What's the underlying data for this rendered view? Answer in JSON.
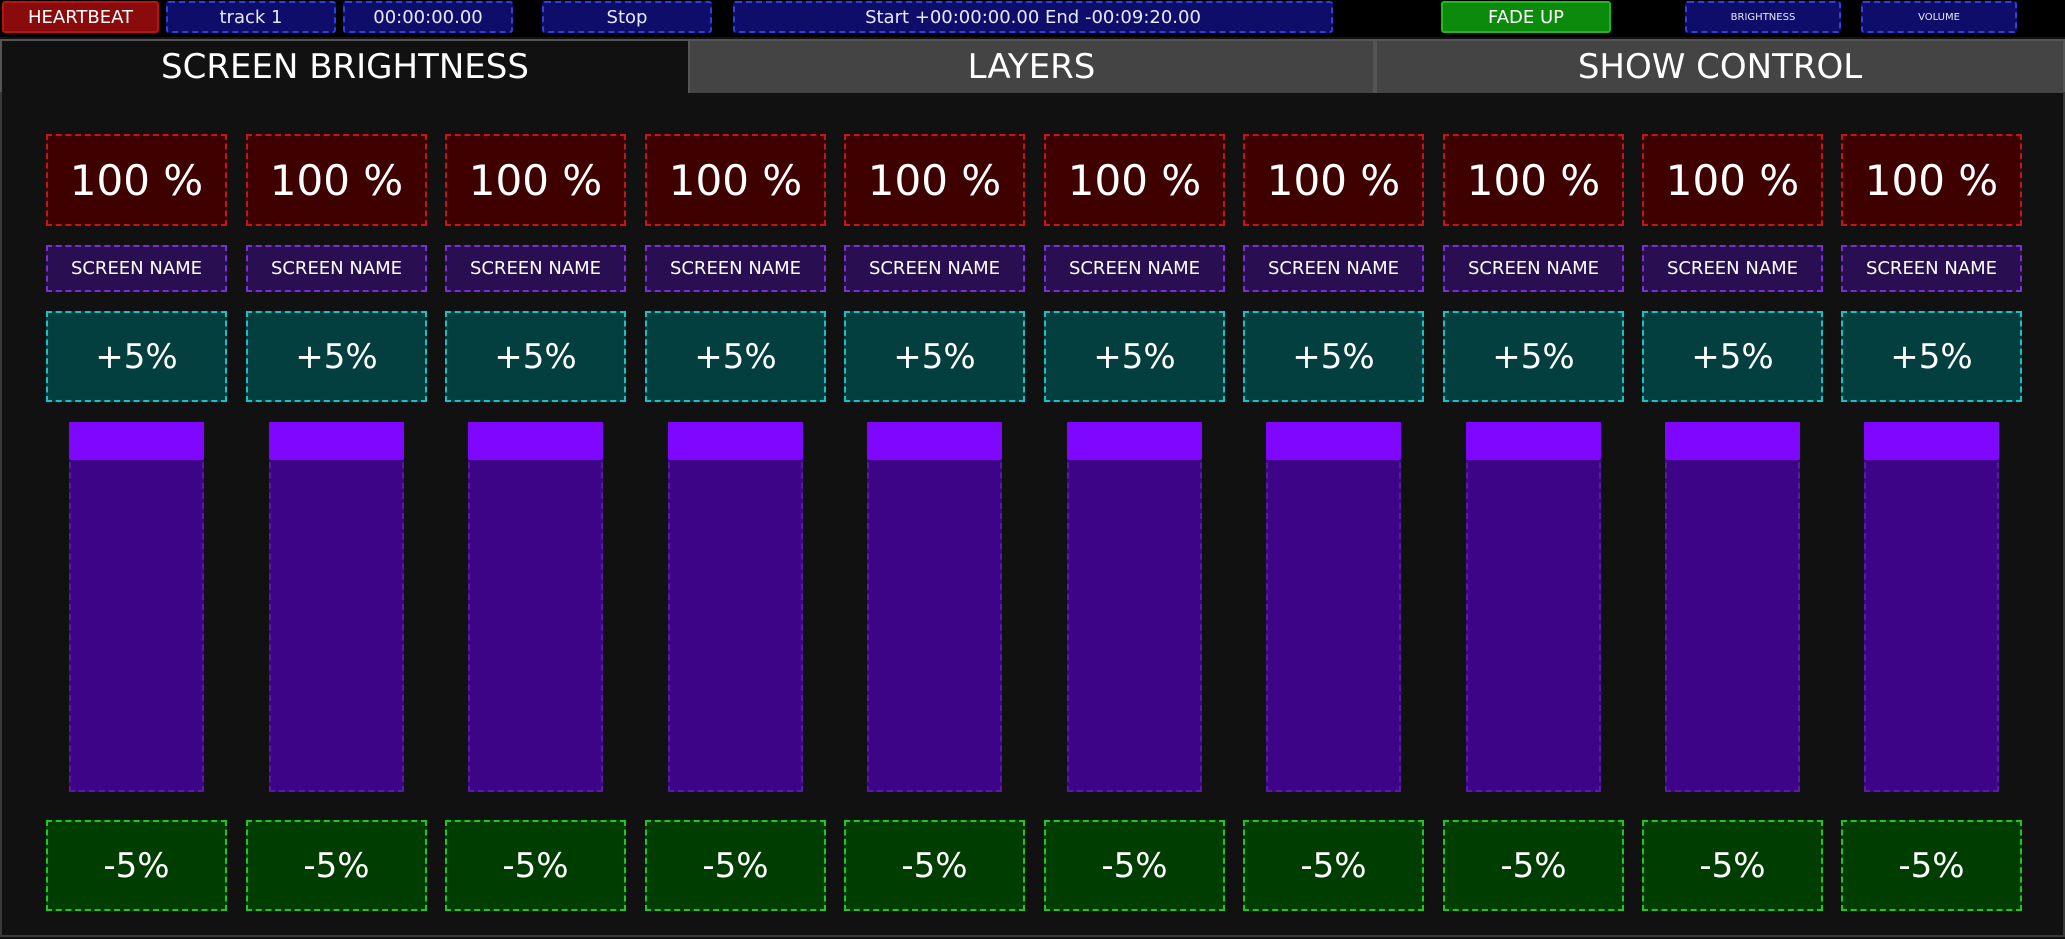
{
  "topbar": {
    "heartbeat": "HEARTBEAT",
    "track": "track 1",
    "timecode": "00:00:00.00",
    "transport": "Stop",
    "range": "Start +00:00:00.00   End -00:09:20.00",
    "fade": "FADE UP",
    "brightness": "BRIGHTNESS",
    "volume": "VOLUME"
  },
  "tabs": [
    {
      "label": "SCREEN BRIGHTNESS",
      "active": true
    },
    {
      "label": "LAYERS",
      "active": false
    },
    {
      "label": "SHOW CONTROL",
      "active": false
    }
  ],
  "channels": [
    {
      "value": "100 %",
      "name": "SCREEN NAME",
      "plus": "+5%",
      "minus": "-5%",
      "level": 1.0
    },
    {
      "value": "100 %",
      "name": "SCREEN NAME",
      "plus": "+5%",
      "minus": "-5%",
      "level": 1.0
    },
    {
      "value": "100 %",
      "name": "SCREEN NAME",
      "plus": "+5%",
      "minus": "-5%",
      "level": 1.0
    },
    {
      "value": "100 %",
      "name": "SCREEN NAME",
      "plus": "+5%",
      "minus": "-5%",
      "level": 1.0
    },
    {
      "value": "100 %",
      "name": "SCREEN NAME",
      "plus": "+5%",
      "minus": "-5%",
      "level": 1.0
    },
    {
      "value": "100 %",
      "name": "SCREEN NAME",
      "plus": "+5%",
      "minus": "-5%",
      "level": 1.0
    },
    {
      "value": "100 %",
      "name": "SCREEN NAME",
      "plus": "+5%",
      "minus": "-5%",
      "level": 1.0
    },
    {
      "value": "100 %",
      "name": "SCREEN NAME",
      "plus": "+5%",
      "minus": "-5%",
      "level": 1.0
    },
    {
      "value": "100 %",
      "name": "SCREEN NAME",
      "plus": "+5%",
      "minus": "-5%",
      "level": 1.0
    },
    {
      "value": "100 %",
      "name": "SCREEN NAME",
      "plus": "+5%",
      "minus": "-5%",
      "level": 1.0
    }
  ],
  "colors": {
    "heartbeat": "#8a0b0b",
    "fade_up": "#0c8a0c",
    "value_box": "#3f0000",
    "name_box": "#2a0e52",
    "plus_box": "#043f3f",
    "minus_box": "#003d00",
    "fader_track": "#3d0487",
    "fader_handle": "#7f06ff"
  }
}
